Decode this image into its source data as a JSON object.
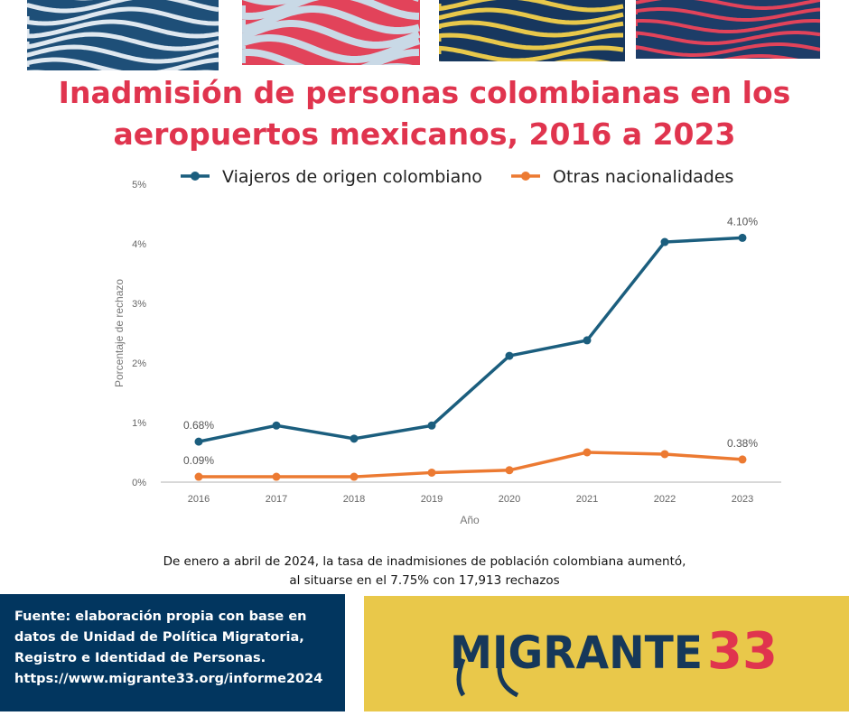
{
  "title": "Inadmisión de personas colombianas en los aeropuertos mexicanos, 2016 a 2023",
  "title_lines": [
    "Inadmisión de personas colombianas en los",
    "aeropuertos mexicanos, 2016 a 2023"
  ],
  "colors": {
    "title": "#e0344e",
    "series_colombian": "#1b5e7e",
    "series_other": "#ec7a32",
    "source_bg": "#02365f",
    "logo_bg": "#e9c84a",
    "logo_text": "#16385a",
    "logo_number": "#e0344e"
  },
  "chart_data": {
    "type": "line",
    "categories": [
      "2016",
      "2017",
      "2018",
      "2019",
      "2020",
      "2021",
      "2022",
      "2023"
    ],
    "series": [
      {
        "name": "Viajeros de origen colombiano",
        "values": [
          0.68,
          0.95,
          0.73,
          0.95,
          2.12,
          2.38,
          4.03,
          4.1
        ]
      },
      {
        "name": "Otras nacionalidades",
        "values": [
          0.09,
          0.09,
          0.09,
          0.16,
          0.2,
          0.5,
          0.47,
          0.38
        ]
      }
    ],
    "data_labels": [
      {
        "series": 0,
        "index": 0,
        "text": "0.68%"
      },
      {
        "series": 0,
        "index": 7,
        "text": "4.10%"
      },
      {
        "series": 1,
        "index": 0,
        "text": "0.09%"
      },
      {
        "series": 1,
        "index": 7,
        "text": "0.38%"
      }
    ],
    "xlabel": "Año",
    "ylabel": "Porcentaje de rechazo",
    "ylim": [
      0,
      5
    ],
    "yticks": [
      "0%",
      "1%",
      "2%",
      "3%",
      "4%",
      "5%"
    ],
    "grid": false,
    "legend_position": "top"
  },
  "note_lines": [
    "De enero a abril de 2024, la tasa de inadmisiones de población colombiana aumentó,",
    "al situarse en el 7.75% con 17,913 rechazos"
  ],
  "source_lines": [
    "Fuente: elaboración propia con base en",
    "datos de Unidad de Política Migratoria,",
    "Registro e Identidad de Personas.",
    "https://www.migrante33.org/informe2024"
  ],
  "logo": {
    "text": "MIGRANTE",
    "number": "33"
  }
}
